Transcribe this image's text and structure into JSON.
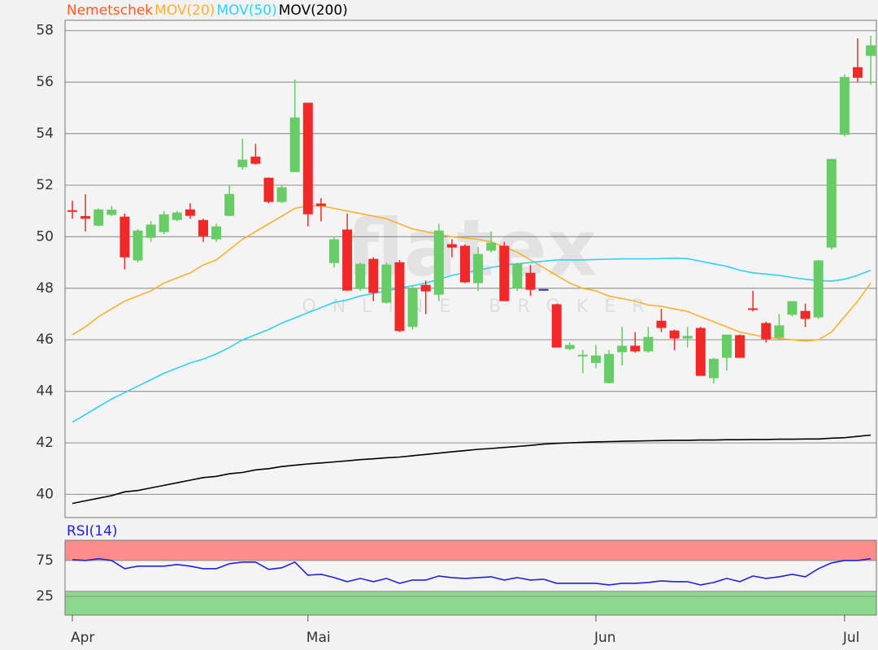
{
  "chart_data": [
    {
      "type": "candlestick",
      "watermark": {
        "title": "flatex",
        "subtitle": "ONLINE BROKER"
      },
      "categories": [
        "Apr",
        null,
        null,
        null,
        null,
        null,
        null,
        null,
        null,
        null,
        null,
        null,
        null,
        null,
        null,
        null,
        null,
        null,
        "Mai",
        null,
        null,
        null,
        null,
        null,
        null,
        null,
        null,
        null,
        null,
        null,
        null,
        null,
        null,
        null,
        null,
        null,
        null,
        null,
        null,
        null,
        "Jun",
        null,
        null,
        null,
        null,
        null,
        null,
        null,
        null,
        null,
        null,
        null,
        null,
        null,
        null,
        null,
        null,
        null,
        null,
        "Jul",
        null,
        null
      ],
      "ohlc": {
        "name": "Nemetschek",
        "color": "#ff5a1f",
        "up_color": "#66cc66",
        "down_color": "#f02828",
        "flat_color": "#2828e0",
        "open": [
          51.03,
          50.8,
          50.43,
          50.85,
          50.78,
          49.08,
          49.96,
          50.18,
          50.65,
          51.06,
          50.65,
          49.9,
          50.81,
          52.7,
          53.11,
          52.29,
          51.35,
          52.51,
          55.2,
          51.29,
          48.98,
          50.28,
          47.97,
          49.14,
          47.44,
          49.01,
          46.5,
          48.13,
          47.75,
          49.71,
          49.65,
          48.2,
          49.46,
          49.65,
          48.0,
          48.6,
          47.97,
          47.38,
          45.64,
          45.36,
          45.1,
          44.32,
          45.52,
          45.77,
          45.55,
          46.74,
          46.36,
          46.05,
          46.46,
          44.51,
          45.3,
          46.18,
          47.22,
          46.65,
          46.08,
          46.97,
          47.12,
          46.87,
          49.58,
          53.96,
          56.58,
          57.02
        ],
        "high": [
          51.4,
          51.65,
          51.1,
          51.2,
          50.9,
          50.3,
          50.6,
          51.0,
          51.0,
          51.3,
          50.7,
          50.5,
          52.0,
          53.8,
          53.6,
          52.3,
          52.0,
          56.1,
          55.2,
          51.5,
          50.0,
          50.9,
          49.0,
          49.2,
          49.0,
          49.1,
          48.1,
          48.3,
          50.5,
          49.9,
          49.7,
          49.6,
          50.2,
          49.8,
          49.0,
          48.9,
          47.97,
          47.4,
          45.9,
          45.6,
          45.8,
          45.6,
          46.5,
          46.3,
          46.5,
          47.2,
          46.4,
          46.5,
          46.5,
          45.3,
          46.2,
          46.2,
          47.9,
          46.7,
          47.0,
          47.5,
          47.4,
          49.1,
          53.0,
          56.3,
          57.7,
          57.8
        ],
        "low": [
          50.7,
          50.2,
          50.4,
          50.8,
          48.73,
          49.0,
          49.8,
          50.1,
          50.6,
          50.7,
          49.8,
          49.8,
          50.8,
          52.6,
          52.8,
          51.3,
          51.3,
          52.5,
          50.4,
          50.6,
          48.8,
          47.9,
          47.9,
          47.5,
          47.4,
          46.3,
          46.4,
          47.0,
          47.5,
          49.2,
          48.2,
          47.9,
          49.4,
          47.5,
          47.9,
          47.7,
          47.97,
          45.7,
          45.6,
          44.7,
          44.9,
          44.3,
          45.0,
          45.5,
          45.5,
          46.3,
          45.6,
          45.7,
          44.6,
          44.3,
          44.8,
          45.3,
          47.1,
          45.9,
          46.0,
          46.9,
          46.5,
          46.8,
          49.5,
          53.9,
          56.0,
          55.9
        ],
        "close": [
          51.0,
          50.7,
          51.06,
          51.05,
          49.2,
          50.24,
          50.47,
          50.87,
          50.94,
          50.81,
          50.02,
          50.4,
          51.66,
          52.99,
          52.83,
          51.35,
          51.92,
          54.63,
          50.87,
          51.19,
          49.9,
          47.91,
          48.95,
          47.82,
          48.92,
          46.34,
          48.0,
          47.88,
          50.24,
          49.58,
          48.23,
          49.33,
          49.77,
          47.5,
          48.95,
          47.94,
          47.97,
          45.7,
          45.8,
          45.42,
          45.39,
          45.45,
          45.77,
          45.55,
          46.11,
          46.46,
          46.05,
          46.15,
          44.6,
          45.26,
          46.2,
          45.3,
          47.16,
          46.02,
          46.56,
          47.5,
          46.81,
          49.08,
          53.02,
          56.2,
          56.17,
          57.43
        ]
      },
      "series": [
        {
          "name": "MOV(20)",
          "color": "#ffb030",
          "values": [
            46.2,
            46.5,
            46.9,
            47.2,
            47.5,
            47.7,
            47.9,
            48.2,
            48.4,
            48.6,
            48.9,
            49.1,
            49.5,
            49.9,
            50.2,
            50.5,
            50.8,
            51.1,
            51.2,
            51.2,
            51.1,
            51.0,
            50.9,
            50.8,
            50.7,
            50.5,
            50.3,
            50.2,
            50.1,
            50.0,
            49.95,
            49.9,
            49.8,
            49.6,
            49.4,
            49.1,
            48.8,
            48.5,
            48.2,
            48.0,
            47.9,
            47.7,
            47.6,
            47.5,
            47.35,
            47.3,
            47.2,
            47.1,
            46.9,
            46.7,
            46.5,
            46.3,
            46.2,
            46.1,
            46.05,
            46.0,
            45.95,
            46.0,
            46.3,
            46.9,
            47.5,
            48.2
          ]
        },
        {
          "name": "MOV(50)",
          "color": "#30d0f8",
          "values": [
            42.8,
            43.1,
            43.4,
            43.7,
            43.95,
            44.2,
            44.45,
            44.7,
            44.9,
            45.1,
            45.25,
            45.45,
            45.7,
            46.0,
            46.2,
            46.4,
            46.65,
            46.85,
            47.05,
            47.25,
            47.45,
            47.55,
            47.7,
            47.8,
            47.9,
            48.0,
            48.1,
            48.2,
            48.35,
            48.5,
            48.6,
            48.7,
            48.8,
            48.9,
            48.95,
            49.0,
            49.05,
            49.1,
            49.1,
            49.1,
            49.12,
            49.13,
            49.14,
            49.14,
            49.14,
            49.15,
            49.17,
            49.15,
            49.05,
            48.95,
            48.85,
            48.7,
            48.6,
            48.55,
            48.5,
            48.42,
            48.35,
            48.3,
            48.28,
            48.35,
            48.5,
            48.7
          ]
        },
        {
          "name": "MOV(200)",
          "color": "#000000",
          "values": [
            39.65,
            39.75,
            39.85,
            39.95,
            40.1,
            40.15,
            40.25,
            40.35,
            40.45,
            40.55,
            40.65,
            40.7,
            40.8,
            40.85,
            40.95,
            41.0,
            41.08,
            41.13,
            41.18,
            41.22,
            41.26,
            41.3,
            41.35,
            41.38,
            41.42,
            41.45,
            41.5,
            41.55,
            41.6,
            41.65,
            41.7,
            41.75,
            41.78,
            41.82,
            41.86,
            41.9,
            41.95,
            41.98,
            42.0,
            42.02,
            42.04,
            42.05,
            42.06,
            42.07,
            42.08,
            42.09,
            42.1,
            42.1,
            42.11,
            42.11,
            42.12,
            42.12,
            42.13,
            42.13,
            42.14,
            42.14,
            42.15,
            42.15,
            42.18,
            42.2,
            42.25,
            42.3
          ]
        }
      ],
      "ylim": [
        39.1,
        58.4
      ],
      "yticks": [
        40,
        42,
        44,
        46,
        48,
        50,
        52,
        54,
        56,
        58
      ],
      "grid": true
    },
    {
      "type": "line",
      "title": "RSI(14)",
      "title_color": "#2020e0",
      "series": [
        {
          "name": "RSI(14)",
          "color": "#2020e0",
          "values": [
            76.1,
            75,
            77.3,
            75,
            63.6,
            67,
            67,
            67,
            69.3,
            67,
            63.6,
            63.6,
            70.5,
            72.7,
            72.7,
            62.5,
            64.8,
            72.7,
            54.5,
            55.7,
            51.1,
            45.5,
            50,
            45.5,
            50,
            43.2,
            47.7,
            47.7,
            53.4,
            51.1,
            50,
            51.1,
            52.3,
            47.7,
            51.1,
            47.7,
            48.9,
            43.2,
            43.2,
            43.2,
            43.2,
            40.9,
            43.2,
            43.2,
            44.3,
            46.6,
            45.5,
            45.5,
            40.9,
            44.3,
            50,
            45.5,
            53.4,
            50,
            52.3,
            55.7,
            52.3,
            63.6,
            71.6,
            75,
            75,
            77.3
          ]
        }
      ],
      "zones": [
        {
          "from": 75,
          "to": 103,
          "color": "#ff8c8c"
        },
        {
          "from": -1,
          "to": 32,
          "color": "#8cd88c"
        }
      ],
      "ylim": [
        -1,
        103
      ],
      "yticks": [
        25,
        75
      ],
      "grid": true
    }
  ]
}
